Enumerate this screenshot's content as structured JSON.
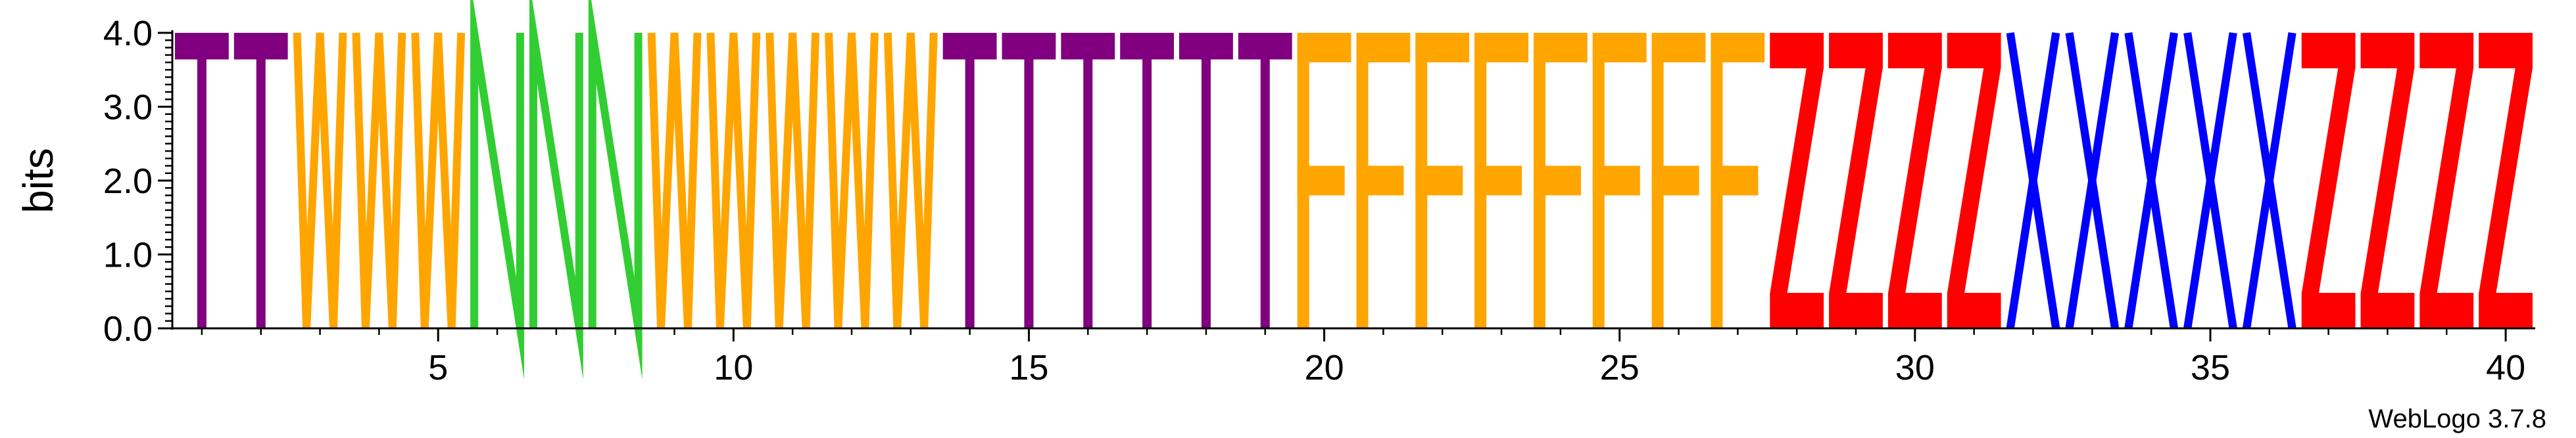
{
  "chart_data": {
    "type": "sequence-logo",
    "title": "",
    "xlabel": "",
    "ylabel": "bits",
    "ylim": [
      0,
      4.0
    ],
    "y_ticks": [
      "0.0",
      "1.0",
      "2.0",
      "3.0",
      "4.0"
    ],
    "x_ticks": [
      "5",
      "10",
      "15",
      "20",
      "25",
      "30",
      "35",
      "40"
    ],
    "positions": [
      1,
      2,
      3,
      4,
      5,
      6,
      7,
      8,
      9,
      10,
      11,
      12,
      13,
      14,
      15,
      16,
      17,
      18,
      19,
      20,
      21,
      22,
      23,
      24,
      25,
      26,
      27,
      28,
      29,
      30,
      31,
      32,
      33,
      34,
      35,
      36,
      37,
      38,
      39,
      40
    ],
    "letters": [
      "T",
      "T",
      "W",
      "W",
      "W",
      "N",
      "N",
      "N",
      "W",
      "W",
      "W",
      "W",
      "W",
      "T",
      "T",
      "T",
      "T",
      "T",
      "T",
      "F",
      "F",
      "F",
      "F",
      "F",
      "F",
      "F",
      "F",
      "Z",
      "Z",
      "Z",
      "Z",
      "X",
      "X",
      "X",
      "X",
      "X",
      "Z",
      "Z",
      "Z",
      "Z"
    ],
    "heights": [
      4.0,
      4.0,
      4.0,
      4.0,
      4.0,
      4.0,
      4.0,
      4.0,
      4.0,
      4.0,
      4.0,
      4.0,
      4.0,
      4.0,
      4.0,
      4.0,
      4.0,
      4.0,
      4.0,
      4.0,
      4.0,
      4.0,
      4.0,
      4.0,
      4.0,
      4.0,
      4.0,
      4.0,
      4.0,
      4.0,
      4.0,
      4.0,
      4.0,
      4.0,
      4.0,
      4.0,
      4.0,
      4.0,
      4.0,
      4.0
    ],
    "colors": {
      "T": "#800080",
      "W": "#FFA500",
      "N": "#32CD32",
      "F": "#FFA500",
      "Z": "#FF0000",
      "X": "#0000FF"
    }
  },
  "footer": {
    "version_label": "WebLogo 3.7.8"
  }
}
